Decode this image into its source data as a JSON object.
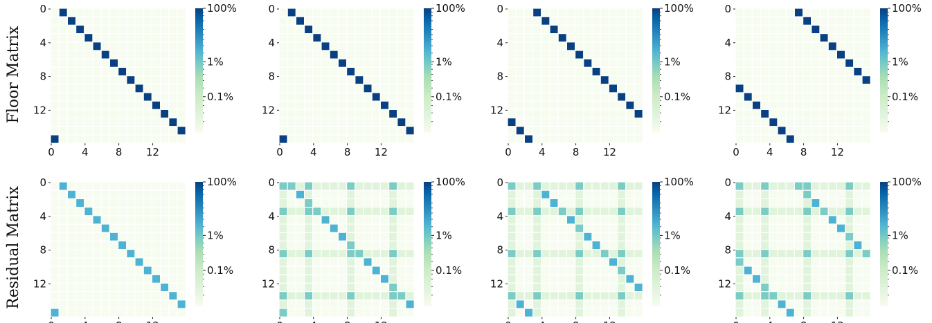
{
  "chart_data": {
    "type": "heatmap",
    "size": 16,
    "x_ticks": [
      "0",
      "4",
      "8",
      "12"
    ],
    "y_ticks": [
      "0",
      "4",
      "8",
      "12"
    ],
    "colorbar_ticks": [
      "100%",
      "1%",
      "0.1%"
    ],
    "colormap": [
      "#f7fcf0",
      "#e0f3db",
      "#ccebc5",
      "#a8ddb5",
      "#7bccc4",
      "#4eb3d3",
      "#2b8cbe",
      "#0868ac",
      "#084081"
    ],
    "rows": [
      {
        "label": "Floor Matrix",
        "matrices": [
          {
            "shift": 1,
            "diagonal_value": 100,
            "offdiag_value": 0,
            "background_value": 0,
            "hub_value": 0,
            "hubs": []
          },
          {
            "shift": 1,
            "diagonal_value": 100,
            "offdiag_value": 0,
            "background_value": 0,
            "hub_value": 0,
            "hubs": []
          },
          {
            "shift": 3,
            "diagonal_value": 100,
            "offdiag_value": 0,
            "background_value": 0,
            "hub_value": 0,
            "hubs": []
          },
          {
            "shift": 7,
            "diagonal_value": 100,
            "offdiag_value": 0,
            "background_value": 0,
            "hub_value": 0,
            "hubs": []
          }
        ]
      },
      {
        "label": "Residual Matrix",
        "matrices": [
          {
            "shift": 1,
            "diagonal_value": 3,
            "offdiag_value": 0,
            "background_value": 0,
            "hub_value": 0,
            "hubs": []
          },
          {
            "shift": 1,
            "diagonal_value": 3,
            "offdiag_value": 0.1,
            "background_value": 0,
            "hub_value": 3,
            "hubs": [
              0,
              3,
              8,
              13
            ]
          },
          {
            "shift": 3,
            "diagonal_value": 3,
            "offdiag_value": 0.1,
            "background_value": 0,
            "hub_value": 3,
            "hubs": [
              0,
              3,
              8,
              13
            ]
          },
          {
            "shift": 7,
            "diagonal_value": 3,
            "offdiag_value": 0.1,
            "background_value": 0,
            "hub_value": 3,
            "hubs": [
              0,
              3,
              8,
              13
            ]
          }
        ]
      }
    ]
  }
}
